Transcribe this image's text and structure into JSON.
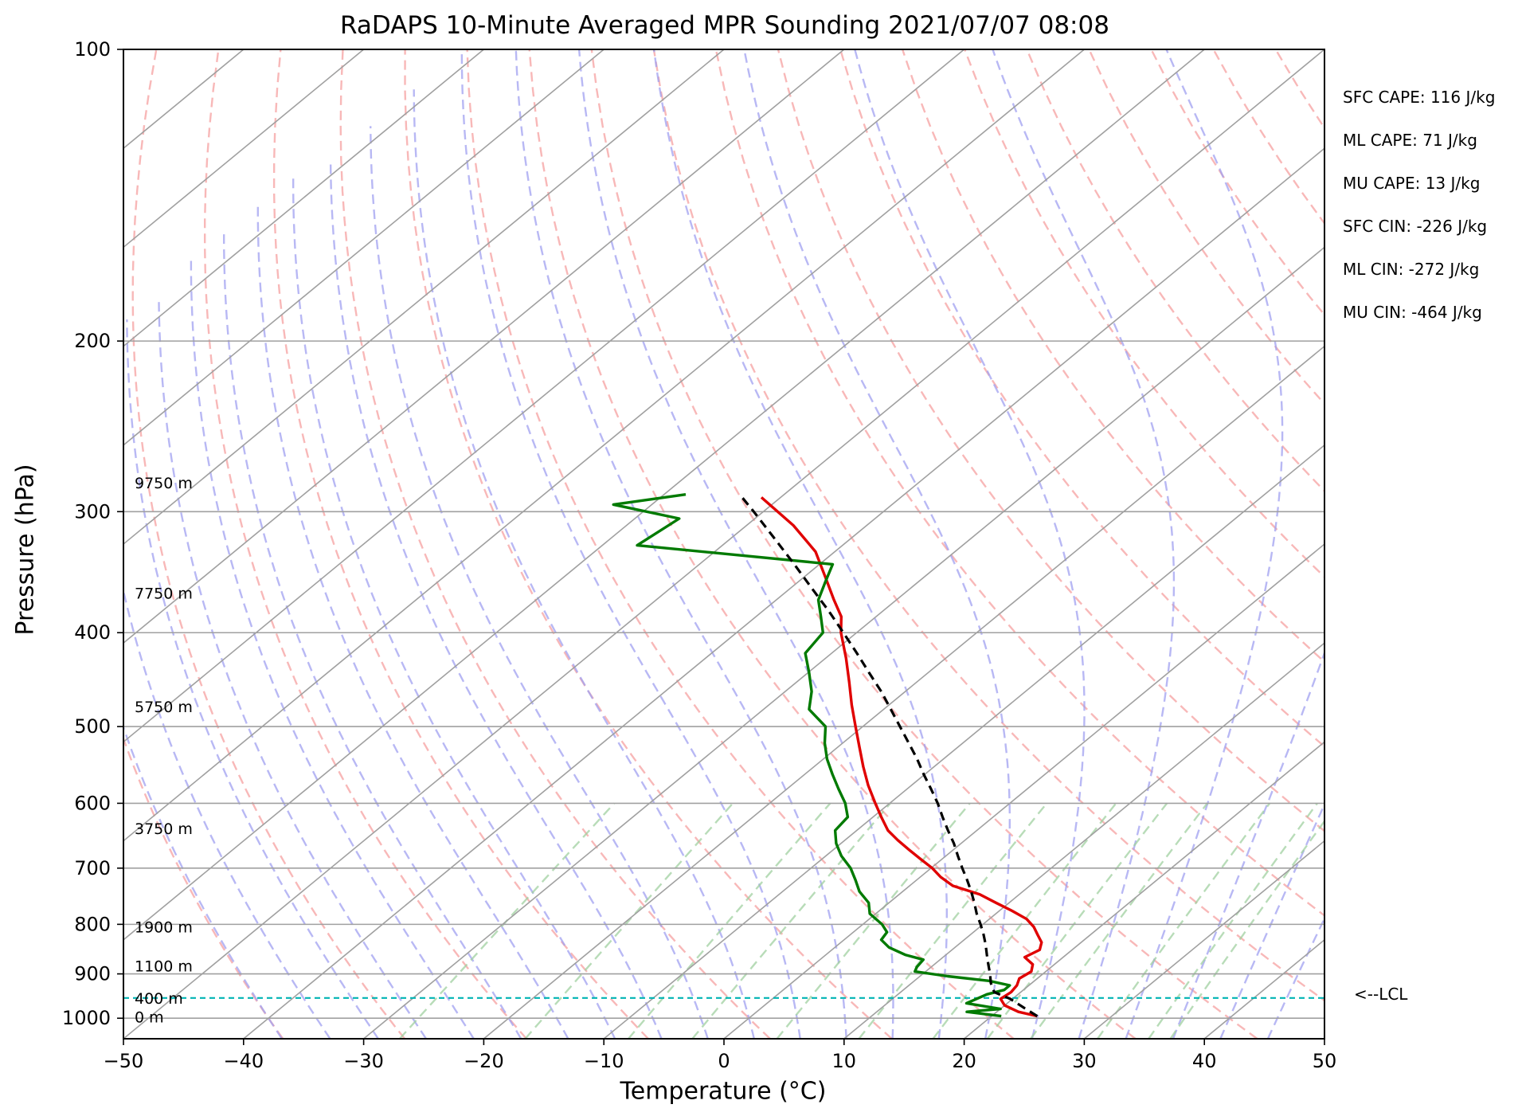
{
  "title": "RaDAPS 10-Minute Averaged MPR Sounding 2021/07/07 08:08",
  "chart_data": {
    "type": "line",
    "skew_t": true,
    "xlabel": "Temperature (°C)",
    "ylabel": "Pressure (hPa)",
    "xlim": [
      -50,
      50
    ],
    "ylim": [
      1050,
      100
    ],
    "y_scale": "log",
    "x_ticks": [
      -50,
      -40,
      -30,
      -20,
      -10,
      0,
      10,
      20,
      30,
      40,
      50
    ],
    "x_tick_labels": [
      "−50",
      "−40",
      "−30",
      "−20",
      "−10",
      "0",
      "10",
      "20",
      "30",
      "40",
      "50"
    ],
    "y_ticks": [
      1000,
      900,
      800,
      700,
      600,
      500,
      400,
      300,
      200,
      100
    ],
    "y_tick_labels": [
      "1000",
      "900",
      "800",
      "700",
      "600",
      "500",
      "400",
      "300",
      "200",
      "100"
    ],
    "grid": true,
    "colors": {
      "temperature": "#e00000",
      "dewpoint": "#007a00",
      "parcel": "#000000",
      "lcl_line": "#00b4b4",
      "isotherm": "#a0a0a0",
      "dry_adiabat": "#f5a0a0",
      "moist_adiabat": "#a0a0f0",
      "mixing_ratio": "#a0d0a0"
    },
    "series": [
      {
        "key": "temperature",
        "pressure": [
          995,
          985,
          970,
          955,
          940,
          925,
          910,
          895,
          880,
          865,
          850,
          835,
          820,
          805,
          790,
          775,
          760,
          745,
          730,
          715,
          700,
          685,
          670,
          655,
          640,
          620,
          600,
          575,
          550,
          525,
          500,
          475,
          450,
          425,
          400,
          385,
          370,
          350,
          330,
          310,
          290
        ],
        "temp": [
          23.8,
          21.8,
          20.0,
          19.0,
          19.2,
          19.0,
          18.5,
          18.8,
          18.2,
          16.8,
          17.3,
          16.7,
          15.6,
          14.5,
          13.1,
          11.1,
          8.9,
          6.7,
          3.6,
          1.7,
          0.1,
          -1.8,
          -3.7,
          -5.6,
          -7.4,
          -9.3,
          -11.2,
          -13.6,
          -15.9,
          -18.2,
          -20.6,
          -23.1,
          -25.6,
          -28.3,
          -31.3,
          -32.9,
          -35.2,
          -38.3,
          -41.6,
          -46.1,
          -51.6
        ]
      },
      {
        "key": "dewpoint",
        "pressure": [
          995,
          985,
          978,
          965,
          955,
          945,
          935,
          925,
          915,
          905,
          895,
          885,
          870,
          860,
          845,
          830,
          815,
          800,
          780,
          760,
          740,
          720,
          700,
          680,
          660,
          640,
          620,
          600,
          580,
          560,
          540,
          520,
          500,
          480,
          460,
          440,
          420,
          400,
          385,
          370,
          355,
          340,
          325,
          305,
          295,
          288
        ],
        "temp": [
          20.8,
          17.5,
          20.0,
          16.6,
          17.0,
          17.4,
          18.4,
          18.4,
          16.2,
          12.3,
          9.1,
          8.8,
          8.6,
          6.6,
          4.5,
          3.1,
          2.8,
          1.6,
          -0.5,
          -1.7,
          -3.6,
          -5.1,
          -6.7,
          -8.7,
          -10.4,
          -11.8,
          -12.1,
          -13.7,
          -15.7,
          -17.7,
          -19.7,
          -21.5,
          -23.1,
          -26.2,
          -27.8,
          -29.9,
          -32.2,
          -32.8,
          -34.6,
          -36.5,
          -37.7,
          -38.9,
          -57.1,
          -56.3,
          -63.2,
          -58.2
        ]
      },
      {
        "key": "parcel",
        "pressure": [
          995,
          975,
          955,
          940,
          920,
          900,
          880,
          860,
          840,
          820,
          800,
          780,
          760,
          740,
          720,
          700,
          680,
          660,
          640,
          620,
          600,
          580,
          560,
          540,
          520,
          500,
          480,
          460,
          440,
          420,
          400,
          380,
          360,
          340,
          320,
          300,
          288
        ],
        "temp": [
          23.8,
          21.8,
          19.8,
          17.8,
          16.6,
          15.6,
          14.5,
          13.4,
          12.3,
          11.1,
          9.8,
          8.4,
          7.1,
          5.7,
          4.2,
          2.6,
          1.0,
          -0.6,
          -2.4,
          -4.2,
          -6.0,
          -8.0,
          -10.1,
          -12.2,
          -14.5,
          -16.9,
          -19.4,
          -22.0,
          -24.9,
          -27.9,
          -31.1,
          -34.5,
          -38.2,
          -42.1,
          -46.3,
          -50.8,
          -53.7
        ]
      }
    ],
    "lcl_pressure": 953,
    "height_labels": [
      {
        "text": "9750 m",
        "pressure": 280
      },
      {
        "text": "7750 m",
        "pressure": 364
      },
      {
        "text": "5750 m",
        "pressure": 477
      },
      {
        "text": "3750 m",
        "pressure": 637
      },
      {
        "text": "1900 m",
        "pressure": 805
      },
      {
        "text": "1100 m",
        "pressure": 883
      },
      {
        "text": "400 m",
        "pressure": 953
      },
      {
        "text": "0 m",
        "pressure": 997
      }
    ],
    "annotations": [
      "SFC CAPE: 116 J/kg",
      "ML CAPE: 71 J/kg",
      "MU CAPE: 13 J/kg",
      "SFC CIN: -226 J/kg",
      "ML CIN: -272 J/kg",
      "MU CIN: -464 J/kg"
    ],
    "lcl_label": "<--LCL"
  }
}
